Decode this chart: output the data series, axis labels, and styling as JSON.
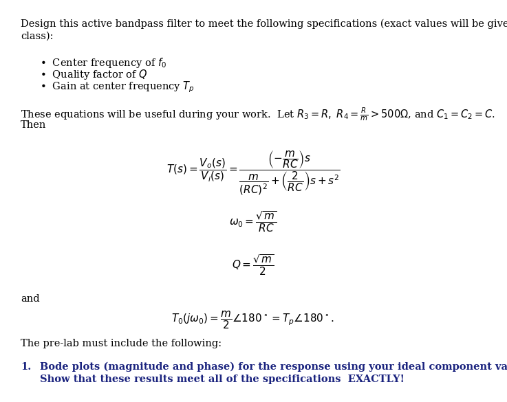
{
  "bg_color": "#ffffff",
  "text_color": "#000000",
  "blue_color": "#1a237e",
  "figsize": [
    7.37,
    5.85
  ],
  "dpi": 100,
  "intro_line1": "Design this active bandpass filter to meet the following specifications (exact values will be given in",
  "intro_line2": "class):",
  "bullets": [
    "Center frequency of $f_0$",
    "Quality factor of $Q$",
    "Gain at center frequency $T_p$"
  ],
  "eq_intro_1": "These equations will be useful during your work.  Let $R_3 = R,\\ R_4 = \\dfrac{R}{m} > 500\\Omega$, and $C_1 = C_2 = C$.",
  "then_text": "Then",
  "T_eq": "$T(s) = \\dfrac{V_o(s)}{V_i(s)} = \\dfrac{\\left(-\\dfrac{m}{RC}\\right)s}{\\dfrac{m}{(RC)^2}+\\left(\\dfrac{2}{RC}\\right)s+s^2}$",
  "omega_eq": "$\\omega_0 = \\dfrac{\\sqrt{m}}{RC}$",
  "Q_eq": "$Q = \\dfrac{\\sqrt{m}}{2}$",
  "and_text": "and",
  "T0_eq": "$T_0(j\\omega_0) = \\dfrac{m}{2}\\angle 180^\\circ= T_p\\angle 180^\\circ.$",
  "prelab_text": "The pre-lab must include the following:",
  "item1_num": "1.",
  "item1_line1": "Bode plots (magnitude and phase) for the response using your ideal component values",
  "item1_line2": "Show that these results meet all of the specifications  EXACTLY!"
}
